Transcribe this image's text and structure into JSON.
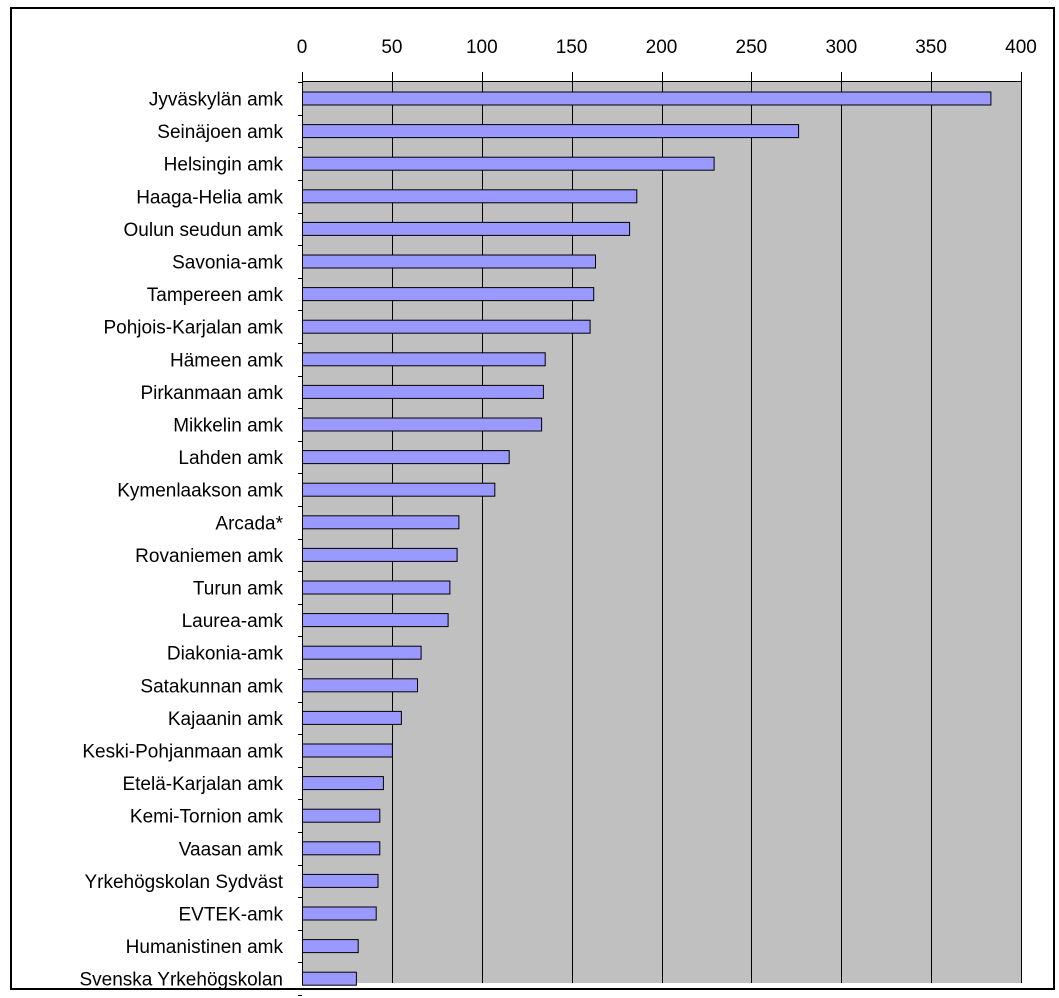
{
  "chart_data": {
    "type": "bar",
    "orientation": "horizontal",
    "title": "",
    "xlabel": "",
    "ylabel": "",
    "categories": [
      "Jyväskylän amk",
      "Seinäjoen amk",
      "Helsingin amk",
      "Haaga-Helia amk",
      "Oulun seudun amk",
      "Savonia-amk",
      "Tampereen amk",
      "Pohjois-Karjalan amk",
      "Hämeen amk",
      "Pirkanmaan amk",
      "Mikkelin amk",
      "Lahden amk",
      "Kymenlaakson amk",
      "Arcada*",
      "Rovaniemen amk",
      "Turun amk",
      "Laurea-amk",
      "Diakonia-amk",
      "Satakunnan amk",
      "Kajaanin amk",
      "Keski-Pohjanmaan amk",
      "Etelä-Karjalan amk",
      "Kemi-Tornion amk",
      "Vaasan amk",
      "Yrkehögskolan Sydväst",
      "EVTEK-amk",
      "Humanistinen amk",
      "Svenska Yrkehögskolan"
    ],
    "values": [
      383,
      276,
      229,
      186,
      182,
      163,
      162,
      160,
      135,
      134,
      133,
      115,
      107,
      87,
      86,
      82,
      81,
      66,
      64,
      55,
      50,
      45,
      43,
      43,
      42,
      41,
      31,
      30
    ],
    "xlim": [
      0,
      400
    ],
    "xticks": [
      0,
      50,
      100,
      150,
      200,
      250,
      300,
      350,
      400
    ],
    "xtick_labels": [
      "0",
      "50",
      "100",
      "150",
      "200",
      "250",
      "300",
      "350",
      "400"
    ],
    "x_axis_position": "top",
    "grid": true,
    "legend": "none",
    "colors": {
      "bar_fill": "#9999ff",
      "bar_stroke": "#000000",
      "plot_background": "#c0c0c0",
      "gridline": "#000000",
      "frame": "#000000"
    }
  }
}
